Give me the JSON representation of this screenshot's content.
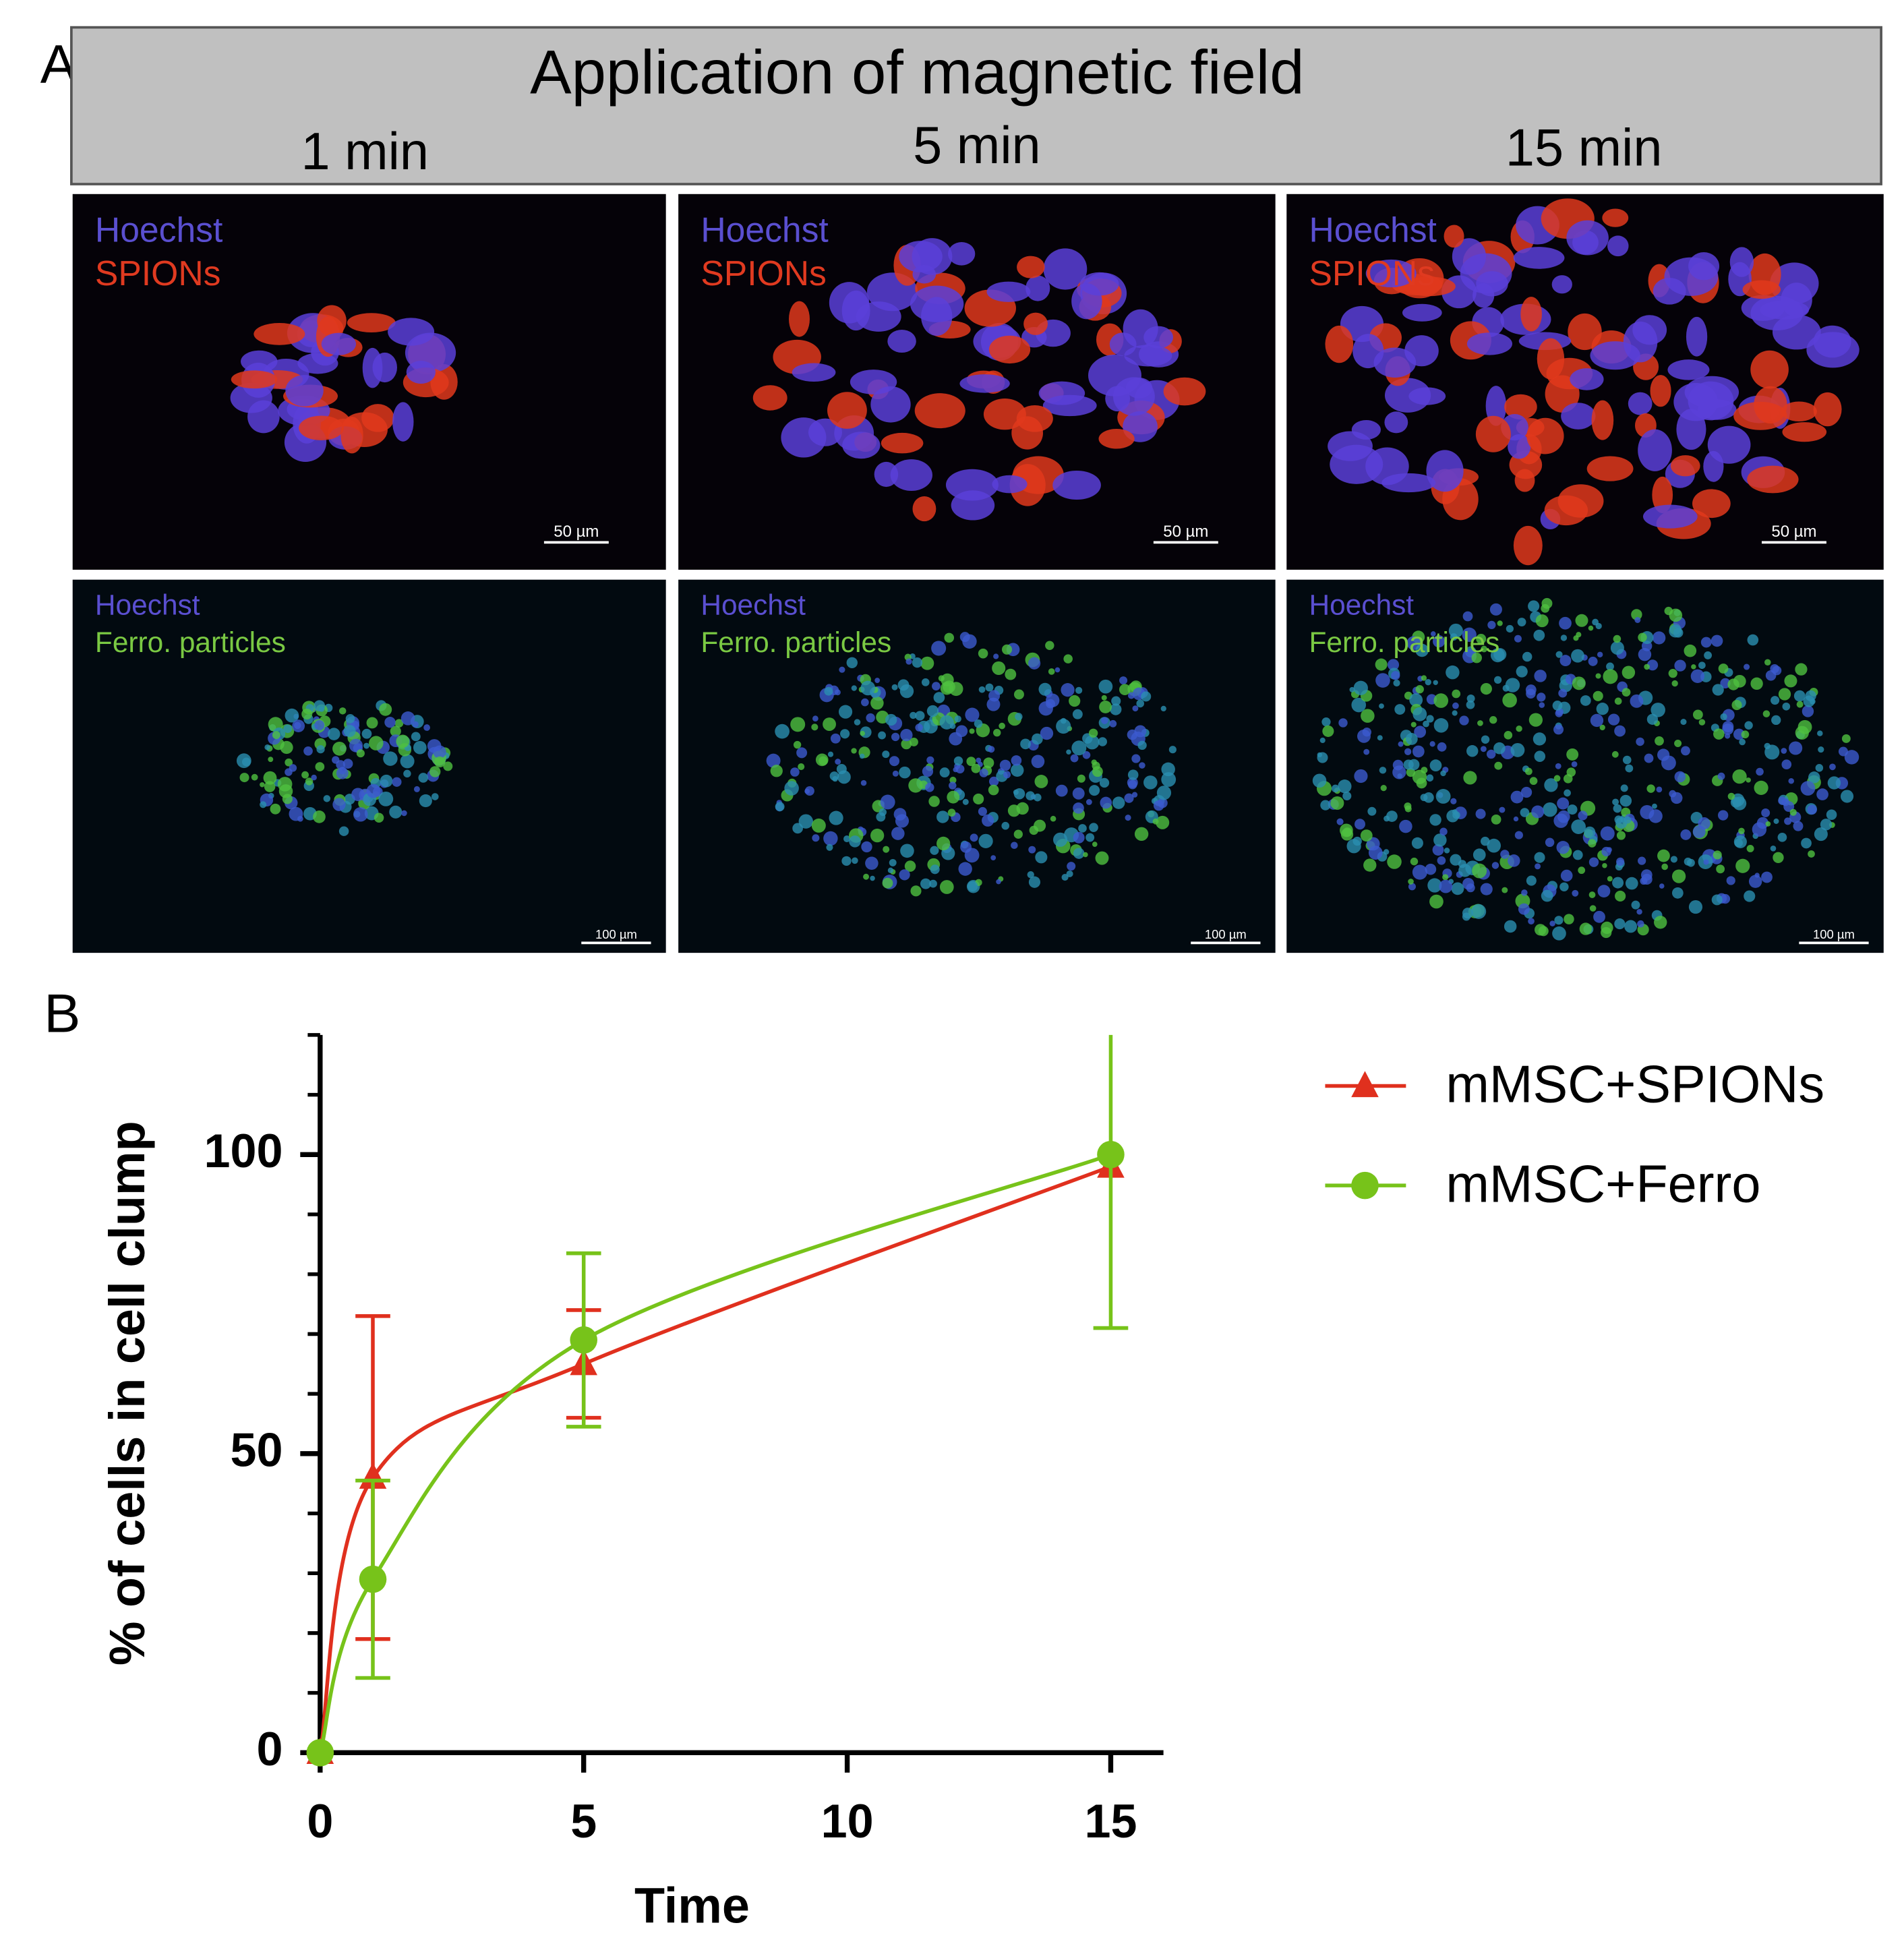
{
  "panel_a": {
    "label": "A",
    "title": "Application of magnetic field",
    "times": [
      "1 min",
      "5 min",
      "15 min"
    ],
    "rows": [
      {
        "labels": [
          "Hoechst",
          "SPIONs"
        ],
        "scale_bars": [
          "50 µm",
          "50 µm",
          "50 µm"
        ]
      },
      {
        "labels": [
          "Hoechst",
          "Ferro. particles"
        ],
        "scale_bars": [
          "100 µm",
          "100 µm",
          "100 µm"
        ]
      }
    ]
  },
  "panel_b_label": "B",
  "chart_data": {
    "type": "line",
    "xlabel": "Time",
    "ylabel": "% of cells in cell clump",
    "x": [
      0,
      1,
      5,
      15
    ],
    "series": [
      {
        "name": "mMSC+SPIONs",
        "color": "#e0301e",
        "marker": "triangle",
        "values": [
          0,
          46,
          65,
          98
        ],
        "errors": [
          0,
          27,
          9,
          0
        ]
      },
      {
        "name": "mMSC+Ferro",
        "color": "#77c31a",
        "marker": "circle",
        "values": [
          0,
          29,
          69,
          100
        ],
        "errors": [
          0,
          16.5,
          14.5,
          29
        ]
      }
    ],
    "xlim": [
      0,
      16
    ],
    "xticks": [
      0,
      5,
      10,
      15
    ],
    "ylim": [
      0,
      120
    ],
    "yticks": [
      0,
      50,
      100
    ],
    "yminorticks": [
      10,
      20,
      30,
      40,
      60,
      70,
      80,
      90,
      110,
      120
    ],
    "legend": "upper right"
  }
}
